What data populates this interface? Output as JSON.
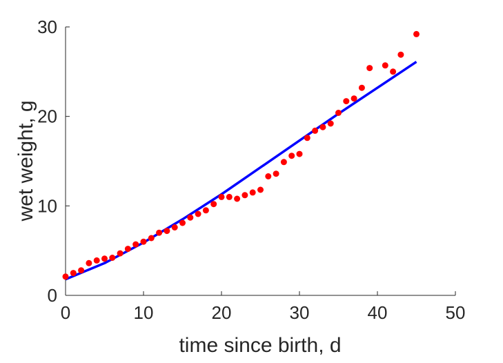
{
  "chart_data": {
    "type": "scatter",
    "title": "",
    "xlabel": "time since birth, d",
    "ylabel": "wet weight, g",
    "xlim": [
      0,
      50
    ],
    "ylim": [
      0,
      30
    ],
    "xticks": [
      0,
      10,
      20,
      30,
      40,
      50
    ],
    "yticks": [
      0,
      10,
      20,
      30
    ],
    "grid": false,
    "box": false,
    "series": [
      {
        "kind": "scatter",
        "color": "#ff0000",
        "x": [
          0,
          1,
          2,
          3,
          4,
          5,
          6,
          7,
          8,
          9,
          10,
          11,
          12,
          13,
          14,
          15,
          16,
          17,
          18,
          19,
          20,
          21,
          22,
          23,
          24,
          25,
          26,
          27,
          28,
          29,
          30,
          31,
          32,
          33,
          34,
          35,
          36,
          37,
          38,
          39,
          41,
          42,
          43,
          45
        ],
        "y": [
          2.1,
          2.5,
          2.8,
          3.6,
          3.9,
          4.1,
          4.2,
          4.7,
          5.2,
          5.7,
          6.0,
          6.4,
          7.0,
          7.2,
          7.6,
          8.1,
          8.7,
          9.1,
          9.5,
          10.2,
          11.0,
          11.0,
          10.8,
          11.2,
          11.5,
          11.8,
          13.3,
          13.6,
          14.9,
          15.6,
          15.8,
          17.6,
          18.4,
          18.8,
          19.2,
          20.4,
          21.7,
          22.0,
          23.2,
          25.4,
          25.7,
          25.0,
          26.9,
          29.2
        ]
      },
      {
        "kind": "line",
        "color": "#0000ff",
        "x": [
          0,
          5,
          10,
          15,
          20,
          25,
          30,
          35,
          40,
          45
        ],
        "y": [
          1.8,
          3.6,
          5.9,
          8.5,
          11.3,
          14.3,
          17.3,
          20.3,
          23.2,
          26.1
        ]
      }
    ]
  }
}
